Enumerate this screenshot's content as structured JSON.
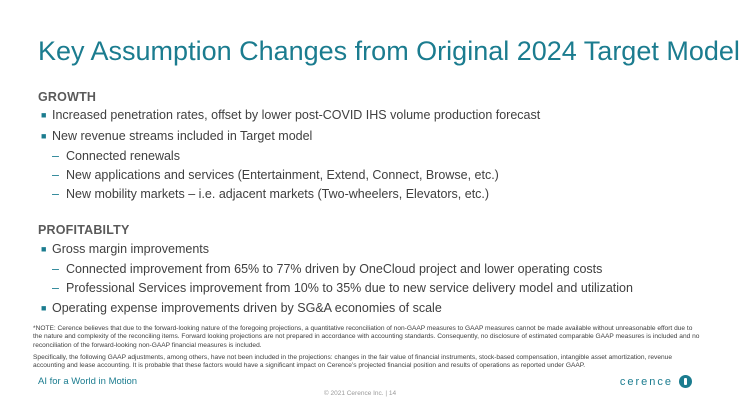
{
  "slide": {
    "title": "Key Assumption Changes from Original 2024 Target Model",
    "growth": {
      "heading": "GROWTH",
      "items": [
        {
          "type": "bullet",
          "text": "Increased penetration rates, offset by lower post-COVID IHS volume production forecast"
        },
        {
          "type": "bullet",
          "text": "New revenue streams included in Target model"
        },
        {
          "type": "dash",
          "text": "Connected renewals"
        },
        {
          "type": "dash",
          "text": "New applications and services (Entertainment, Extend, Connect, Browse, etc.)"
        },
        {
          "type": "dash",
          "text": "New mobility markets – i.e. adjacent markets (Two-wheelers, Elevators, etc.)"
        }
      ]
    },
    "profitability": {
      "heading": "PROFITABILTY",
      "items": [
        {
          "type": "bullet",
          "text": "Gross margin improvements"
        },
        {
          "type": "dash",
          "text": "Connected improvement from 65% to 77% driven by OneCloud project and lower operating costs"
        },
        {
          "type": "dash",
          "text": "Professional Services improvement from 10% to 35% due to new service delivery model and utilization"
        },
        {
          "type": "bullet",
          "text": "Operating expense improvements driven by SG&A economies of scale"
        }
      ]
    },
    "note1": "*NOTE: Cerence believes that due to the forward-looking nature of the foregoing projections, a quantitative reconciliation of non-GAAP measures to GAAP measures cannot be made available without unreasonable effort due to the nature and complexity of the reconciling items. Forward looking projections are not prepared in accordance with accounting standards. Consequently, no disclosure of estimated comparable GAAP measures is included and no reconciliation of the forward-looking non-GAAP financial measures is included.",
    "note2": "Specifically, the following GAAP adjustments, among others, have not been included in the projections: changes in the fair value of financial instruments, stock-based compensation, intangible asset amortization, revenue accounting and lease accounting. It is probable that these factors would have a significant impact on Cerence’s projected financial position and results of operations as reported under GAAP.",
    "tagline": "AI for a World in Motion",
    "footer": "© 2021 Cerence Inc.  |  14",
    "logo_text": "cerence",
    "accent_color": "#1b7c8f"
  }
}
